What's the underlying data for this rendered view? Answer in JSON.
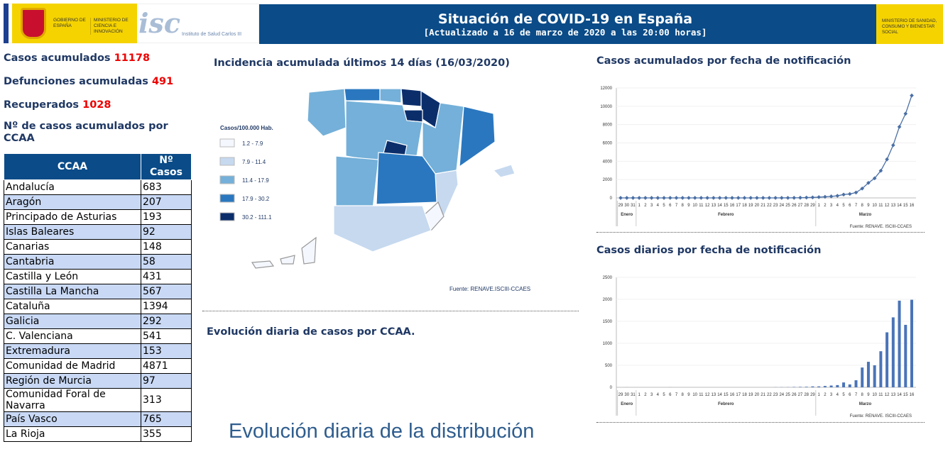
{
  "header": {
    "title": "Situación de COVID-19 en España",
    "subtitle": "[Actualizado a 16 de marzo de 2020 a las 20:00 horas]",
    "logo_gobierno": "GOBIERNO DE ESPAÑA",
    "logo_ministerio_ciencia": "MINISTERIO DE CIENCIA E INNOVACIÓN",
    "logo_isciii": "Instituto de Salud Carlos III",
    "logo_ministerio_sanidad": "MINISTERIO DE SANIDAD, CONSUMO Y BIENESTAR SOCIAL"
  },
  "stats": {
    "casos_label": "Casos acumulados",
    "casos": "11178",
    "defunciones_label": "Defunciones acumuladas",
    "defunciones": "491",
    "recuperados_label": "Recuperados",
    "recuperados": "1028"
  },
  "table": {
    "title": "Nº de casos acumulados por CCAA",
    "headers": [
      "CCAA",
      "Nº Casos"
    ],
    "rows": [
      [
        "Andalucía",
        "683"
      ],
      [
        "Aragón",
        "207"
      ],
      [
        "Principado de Asturias",
        "193"
      ],
      [
        "Islas Baleares",
        "92"
      ],
      [
        "Canarias",
        "148"
      ],
      [
        "Cantabria",
        "58"
      ],
      [
        "Castilla y León",
        "431"
      ],
      [
        "Castilla La Mancha",
        "567"
      ],
      [
        "Cataluña",
        "1394"
      ],
      [
        "Galicia",
        "292"
      ],
      [
        "C. Valenciana",
        "541"
      ],
      [
        "Extremadura",
        "153"
      ],
      [
        "Comunidad de Madrid",
        "4871"
      ],
      [
        "Región de Murcia",
        "97"
      ],
      [
        "Comunidad Foral de Navarra",
        "313"
      ],
      [
        "País Vasco",
        "765"
      ],
      [
        "La Rioja",
        "355"
      ]
    ]
  },
  "map": {
    "title": "Incidencia acumulada últimos 14 días (16/03/2020)",
    "legend_title": "Casos/100.000 Hab.",
    "legend": [
      {
        "label": "1.2 - 7.9",
        "color": "#f4f7fd"
      },
      {
        "label": "7.9 - 11.4",
        "color": "#c6d9ef"
      },
      {
        "label": "11.4 - 17.9",
        "color": "#74b0d9"
      },
      {
        "label": "17.9 - 30.2",
        "color": "#2a77bf"
      },
      {
        "label": "30.2 - 111.1",
        "color": "#0b2e6b"
      }
    ],
    "source": "Fuente: RENAVE.ISCIII-CCAES"
  },
  "evolucion": {
    "title": "Evolución diaria de casos por CCAA.",
    "big_title": "Evolución diaria de la distribución"
  },
  "chart_data": [
    {
      "type": "line",
      "title": "Casos acumulados por fecha de notificación",
      "ylim": [
        0,
        12000
      ],
      "yticks": [
        0,
        2000,
        4000,
        6000,
        8000,
        10000,
        12000
      ],
      "x": [
        "29",
        "30",
        "31",
        "1",
        "2",
        "3",
        "4",
        "5",
        "6",
        "7",
        "8",
        "9",
        "10",
        "11",
        "12",
        "13",
        "14",
        "15",
        "16",
        "17",
        "18",
        "19",
        "20",
        "21",
        "22",
        "23",
        "24",
        "25",
        "26",
        "27",
        "28",
        "29",
        "1",
        "2",
        "3",
        "4",
        "5",
        "6",
        "7",
        "8",
        "9",
        "10",
        "11",
        "12",
        "13",
        "14",
        "15",
        "16"
      ],
      "months": [
        {
          "label": "Enero",
          "start": 0,
          "end": 2
        },
        {
          "label": "Febrero",
          "start": 3,
          "end": 31
        },
        {
          "label": "Marzo",
          "start": 32,
          "end": 47
        }
      ],
      "values": [
        1,
        1,
        1,
        1,
        1,
        1,
        1,
        1,
        2,
        2,
        2,
        2,
        2,
        2,
        2,
        2,
        2,
        2,
        2,
        2,
        2,
        2,
        2,
        2,
        2,
        2,
        3,
        5,
        10,
        20,
        35,
        55,
        84,
        120,
        165,
        228,
        365,
        430,
        589,
        1024,
        1639,
        2140,
        2965,
        4209,
        5753,
        7753,
        9191,
        11178
      ],
      "color": "#4a6fa5",
      "source": "Fuente: RENAVE. ISCIII-CCAES"
    },
    {
      "type": "bar",
      "title": "Casos diarios por fecha de notificación",
      "ylim": [
        0,
        2500
      ],
      "yticks": [
        0,
        500,
        1000,
        1500,
        2000,
        2500
      ],
      "x": [
        "29",
        "30",
        "31",
        "1",
        "2",
        "3",
        "4",
        "5",
        "6",
        "7",
        "8",
        "9",
        "10",
        "11",
        "12",
        "13",
        "14",
        "15",
        "16",
        "17",
        "18",
        "19",
        "20",
        "21",
        "22",
        "23",
        "24",
        "25",
        "26",
        "27",
        "28",
        "29",
        "1",
        "2",
        "3",
        "4",
        "5",
        "6",
        "7",
        "8",
        "9",
        "10",
        "11",
        "12",
        "13",
        "14",
        "15",
        "16"
      ],
      "months": [
        {
          "label": "Enero",
          "start": 0,
          "end": 2
        },
        {
          "label": "Febrero",
          "start": 3,
          "end": 31
        },
        {
          "label": "Marzo",
          "start": 32,
          "end": 47
        }
      ],
      "values": [
        0,
        1,
        0,
        0,
        0,
        0,
        0,
        0,
        1,
        0,
        0,
        0,
        0,
        0,
        0,
        0,
        0,
        0,
        0,
        0,
        0,
        0,
        0,
        0,
        0,
        2,
        3,
        3,
        8,
        10,
        12,
        20,
        20,
        30,
        40,
        50,
        110,
        65,
        160,
        450,
        580,
        500,
        820,
        1250,
        1590,
        1970,
        1420,
        1990
      ],
      "color": "#4a74b8",
      "source": "Fuente: RENAVE. ISCIII-CCAES"
    }
  ]
}
